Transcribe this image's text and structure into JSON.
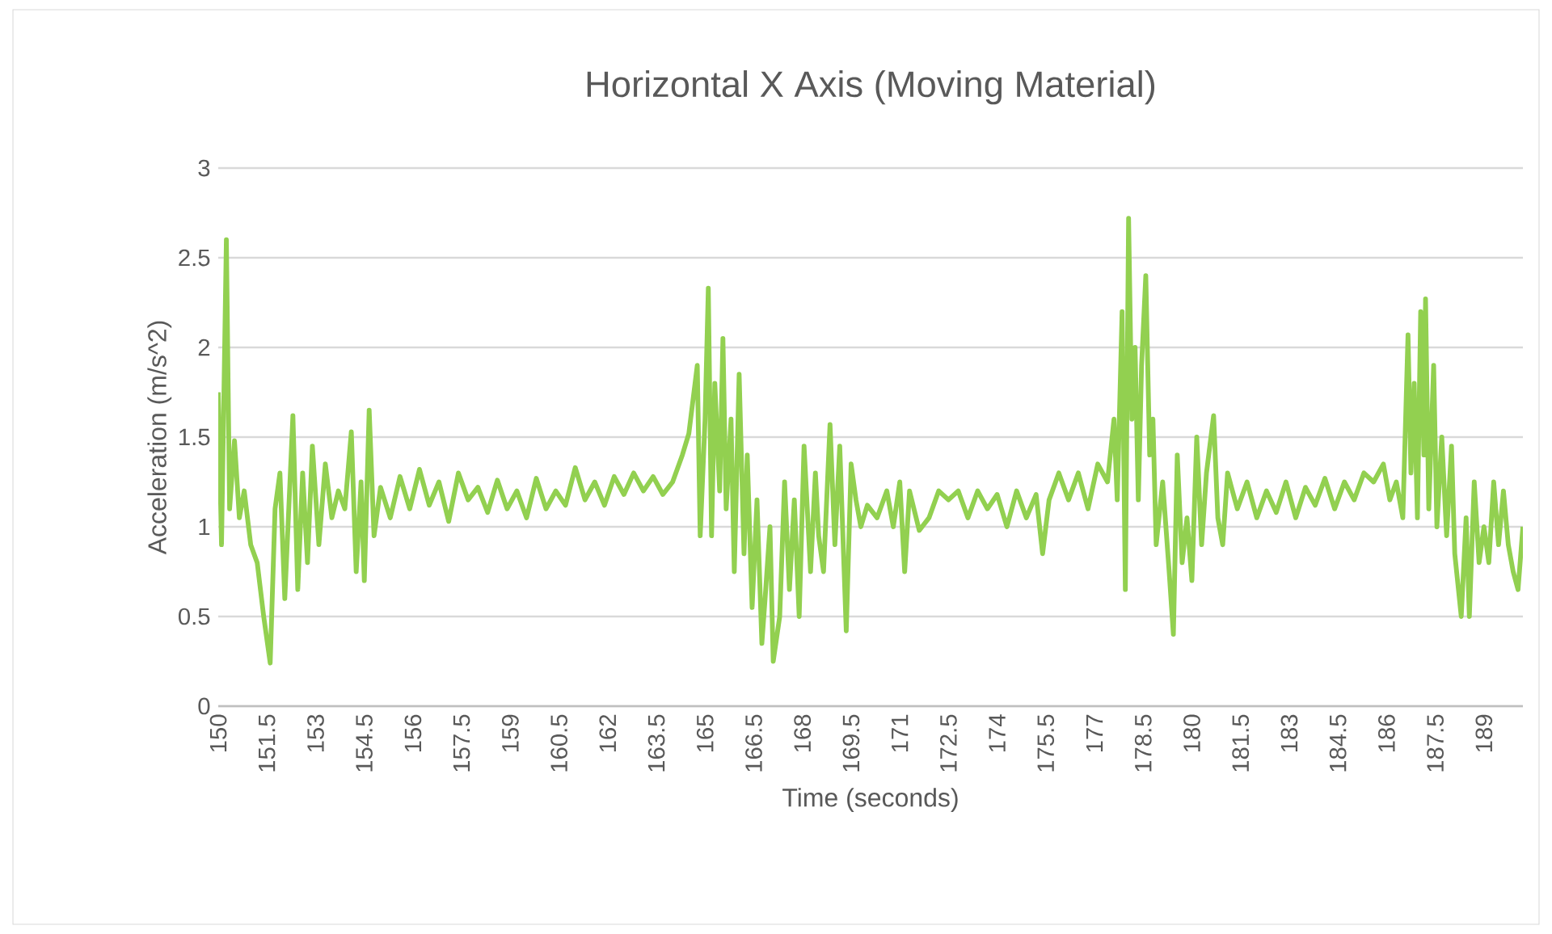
{
  "chart_data": {
    "type": "line",
    "title": "Horizontal X Axis (Moving Material)",
    "xlabel": "Time (seconds)",
    "ylabel": "Acceleration (m/s^2)",
    "xlim": [
      150,
      190.2
    ],
    "xticks": [
      150,
      151.5,
      153,
      154.5,
      156,
      157.5,
      159,
      160.5,
      162,
      163.5,
      165,
      166.5,
      168,
      169.5,
      171,
      172.5,
      174,
      175.5,
      177,
      178.5,
      180,
      181.5,
      183,
      184.5,
      186,
      187.5,
      189
    ],
    "ylim": [
      0,
      3
    ],
    "yticks": [
      0,
      0.5,
      1,
      1.5,
      2,
      2.5,
      3
    ],
    "grid": "y",
    "marker": "none",
    "line_style": "solid",
    "series": [
      {
        "color": "#92d050",
        "x": [
          150.0,
          150.1,
          150.25,
          150.35,
          150.5,
          150.65,
          150.8,
          151.0,
          151.2,
          151.4,
          151.6,
          151.75,
          151.9,
          152.05,
          152.3,
          152.45,
          152.6,
          152.75,
          152.9,
          153.1,
          153.3,
          153.5,
          153.7,
          153.9,
          154.1,
          154.25,
          154.4,
          154.5,
          154.65,
          154.8,
          155.0,
          155.3,
          155.6,
          155.9,
          156.2,
          156.5,
          156.8,
          157.1,
          157.4,
          157.7,
          158.0,
          158.3,
          158.6,
          158.9,
          159.2,
          159.5,
          159.8,
          160.1,
          160.4,
          160.7,
          161.0,
          161.3,
          161.6,
          161.9,
          162.2,
          162.5,
          162.8,
          163.1,
          163.4,
          163.7,
          164.0,
          164.3,
          164.5,
          164.76,
          164.85,
          165.0,
          165.1,
          165.2,
          165.3,
          165.45,
          165.55,
          165.65,
          165.8,
          165.9,
          166.05,
          166.2,
          166.3,
          166.45,
          166.6,
          166.75,
          166.85,
          167.0,
          167.1,
          167.3,
          167.45,
          167.6,
          167.75,
          167.9,
          168.05,
          168.25,
          168.4,
          168.5,
          168.65,
          168.85,
          169.0,
          169.15,
          169.35,
          169.5,
          169.65,
          169.8,
          170.0,
          170.3,
          170.6,
          170.8,
          171.0,
          171.15,
          171.3,
          171.6,
          171.9,
          172.2,
          172.5,
          172.8,
          173.1,
          173.4,
          173.7,
          174.0,
          174.3,
          174.6,
          174.9,
          175.2,
          175.4,
          175.6,
          175.9,
          176.2,
          176.5,
          176.8,
          177.1,
          177.4,
          177.6,
          177.7,
          177.85,
          177.95,
          178.05,
          178.15,
          178.25,
          178.35,
          178.45,
          178.58,
          178.7,
          178.8,
          178.9,
          179.1,
          179.3,
          179.43,
          179.55,
          179.7,
          179.85,
          180.0,
          180.15,
          180.3,
          180.45,
          180.67,
          180.8,
          180.95,
          181.1,
          181.4,
          181.7,
          182.0,
          182.3,
          182.6,
          182.9,
          183.2,
          183.5,
          183.8,
          184.1,
          184.4,
          184.7,
          185.0,
          185.3,
          185.6,
          185.9,
          186.1,
          186.3,
          186.5,
          186.66,
          186.75,
          186.85,
          186.95,
          187.05,
          187.15,
          187.2,
          187.3,
          187.45,
          187.55,
          187.7,
          187.85,
          188.0,
          188.1,
          188.3,
          188.45,
          188.55,
          188.7,
          188.85,
          189.0,
          189.15,
          189.3,
          189.45,
          189.6,
          189.75,
          189.9,
          190.05,
          190.2
        ],
        "values": [
          1.75,
          0.9,
          2.6,
          1.1,
          1.48,
          1.05,
          1.2,
          0.9,
          0.8,
          0.5,
          0.24,
          1.1,
          1.3,
          0.6,
          1.62,
          0.65,
          1.3,
          0.8,
          1.45,
          0.9,
          1.35,
          1.05,
          1.2,
          1.1,
          1.53,
          0.75,
          1.25,
          0.7,
          1.65,
          0.95,
          1.22,
          1.05,
          1.28,
          1.1,
          1.32,
          1.12,
          1.25,
          1.03,
          1.3,
          1.15,
          1.22,
          1.08,
          1.26,
          1.1,
          1.2,
          1.05,
          1.27,
          1.1,
          1.2,
          1.12,
          1.33,
          1.15,
          1.25,
          1.12,
          1.28,
          1.18,
          1.3,
          1.2,
          1.28,
          1.18,
          1.25,
          1.4,
          1.52,
          1.9,
          0.95,
          1.6,
          2.33,
          0.95,
          1.8,
          1.2,
          2.05,
          1.1,
          1.6,
          0.75,
          1.85,
          0.85,
          1.4,
          0.55,
          1.15,
          0.35,
          0.6,
          1.0,
          0.25,
          0.5,
          1.25,
          0.65,
          1.15,
          0.5,
          1.45,
          0.75,
          1.3,
          0.95,
          0.75,
          1.57,
          0.9,
          1.45,
          0.42,
          1.35,
          1.15,
          1.0,
          1.12,
          1.05,
          1.2,
          1.0,
          1.25,
          0.75,
          1.2,
          0.98,
          1.05,
          1.2,
          1.15,
          1.2,
          1.05,
          1.2,
          1.1,
          1.18,
          1.0,
          1.2,
          1.05,
          1.18,
          0.85,
          1.15,
          1.3,
          1.15,
          1.3,
          1.1,
          1.35,
          1.25,
          1.6,
          1.15,
          2.2,
          0.65,
          2.72,
          1.6,
          2.0,
          1.15,
          1.9,
          2.4,
          1.4,
          1.6,
          0.9,
          1.25,
          0.75,
          0.4,
          1.4,
          0.8,
          1.05,
          0.7,
          1.5,
          0.9,
          1.3,
          1.62,
          1.05,
          0.9,
          1.3,
          1.1,
          1.25,
          1.05,
          1.2,
          1.08,
          1.25,
          1.05,
          1.22,
          1.12,
          1.27,
          1.1,
          1.25,
          1.15,
          1.3,
          1.25,
          1.35,
          1.15,
          1.25,
          1.05,
          2.07,
          1.3,
          1.8,
          1.05,
          2.2,
          1.4,
          2.27,
          1.1,
          1.9,
          1.0,
          1.5,
          0.95,
          1.45,
          0.85,
          0.5,
          1.05,
          0.5,
          1.25,
          0.8,
          1.0,
          0.8,
          1.25,
          0.9,
          1.2,
          0.9,
          0.75,
          0.65,
          1.0
        ]
      }
    ]
  }
}
